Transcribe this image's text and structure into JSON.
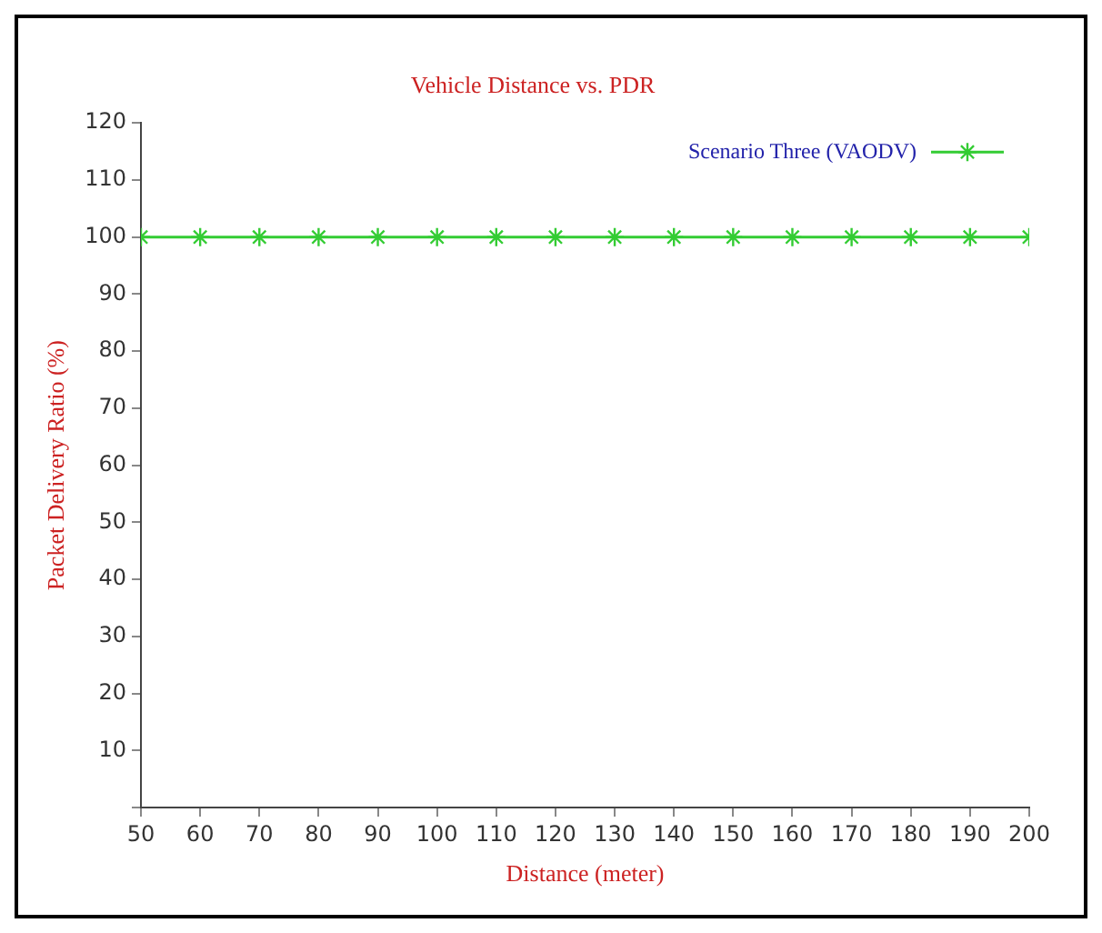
{
  "chart_data": {
    "type": "line",
    "title": "Vehicle Distance vs. PDR",
    "xlabel": "Distance (meter)",
    "ylabel": "Packet Delivery Ratio (%)",
    "x": [
      50,
      60,
      70,
      80,
      90,
      100,
      110,
      120,
      130,
      140,
      150,
      160,
      170,
      180,
      190,
      200
    ],
    "series": [
      {
        "name": "Scenario Three (VAODV)",
        "color": "#33cc33",
        "values": [
          100,
          100,
          100,
          100,
          100,
          100,
          100,
          100,
          100,
          100,
          100,
          100,
          100,
          100,
          100,
          100
        ]
      }
    ],
    "xlim": [
      50,
      200
    ],
    "xticks": [
      50,
      60,
      70,
      80,
      90,
      100,
      110,
      120,
      130,
      140,
      150,
      160,
      170,
      180,
      190,
      200
    ],
    "ylim": [
      0,
      120
    ],
    "yticks": [
      {
        "value": 0,
        "label": null
      },
      10,
      20,
      30,
      40,
      50,
      60,
      70,
      80,
      90,
      100,
      110,
      120
    ],
    "grid": false,
    "legend": "top right",
    "marker": "cross",
    "line_style": "solid"
  }
}
